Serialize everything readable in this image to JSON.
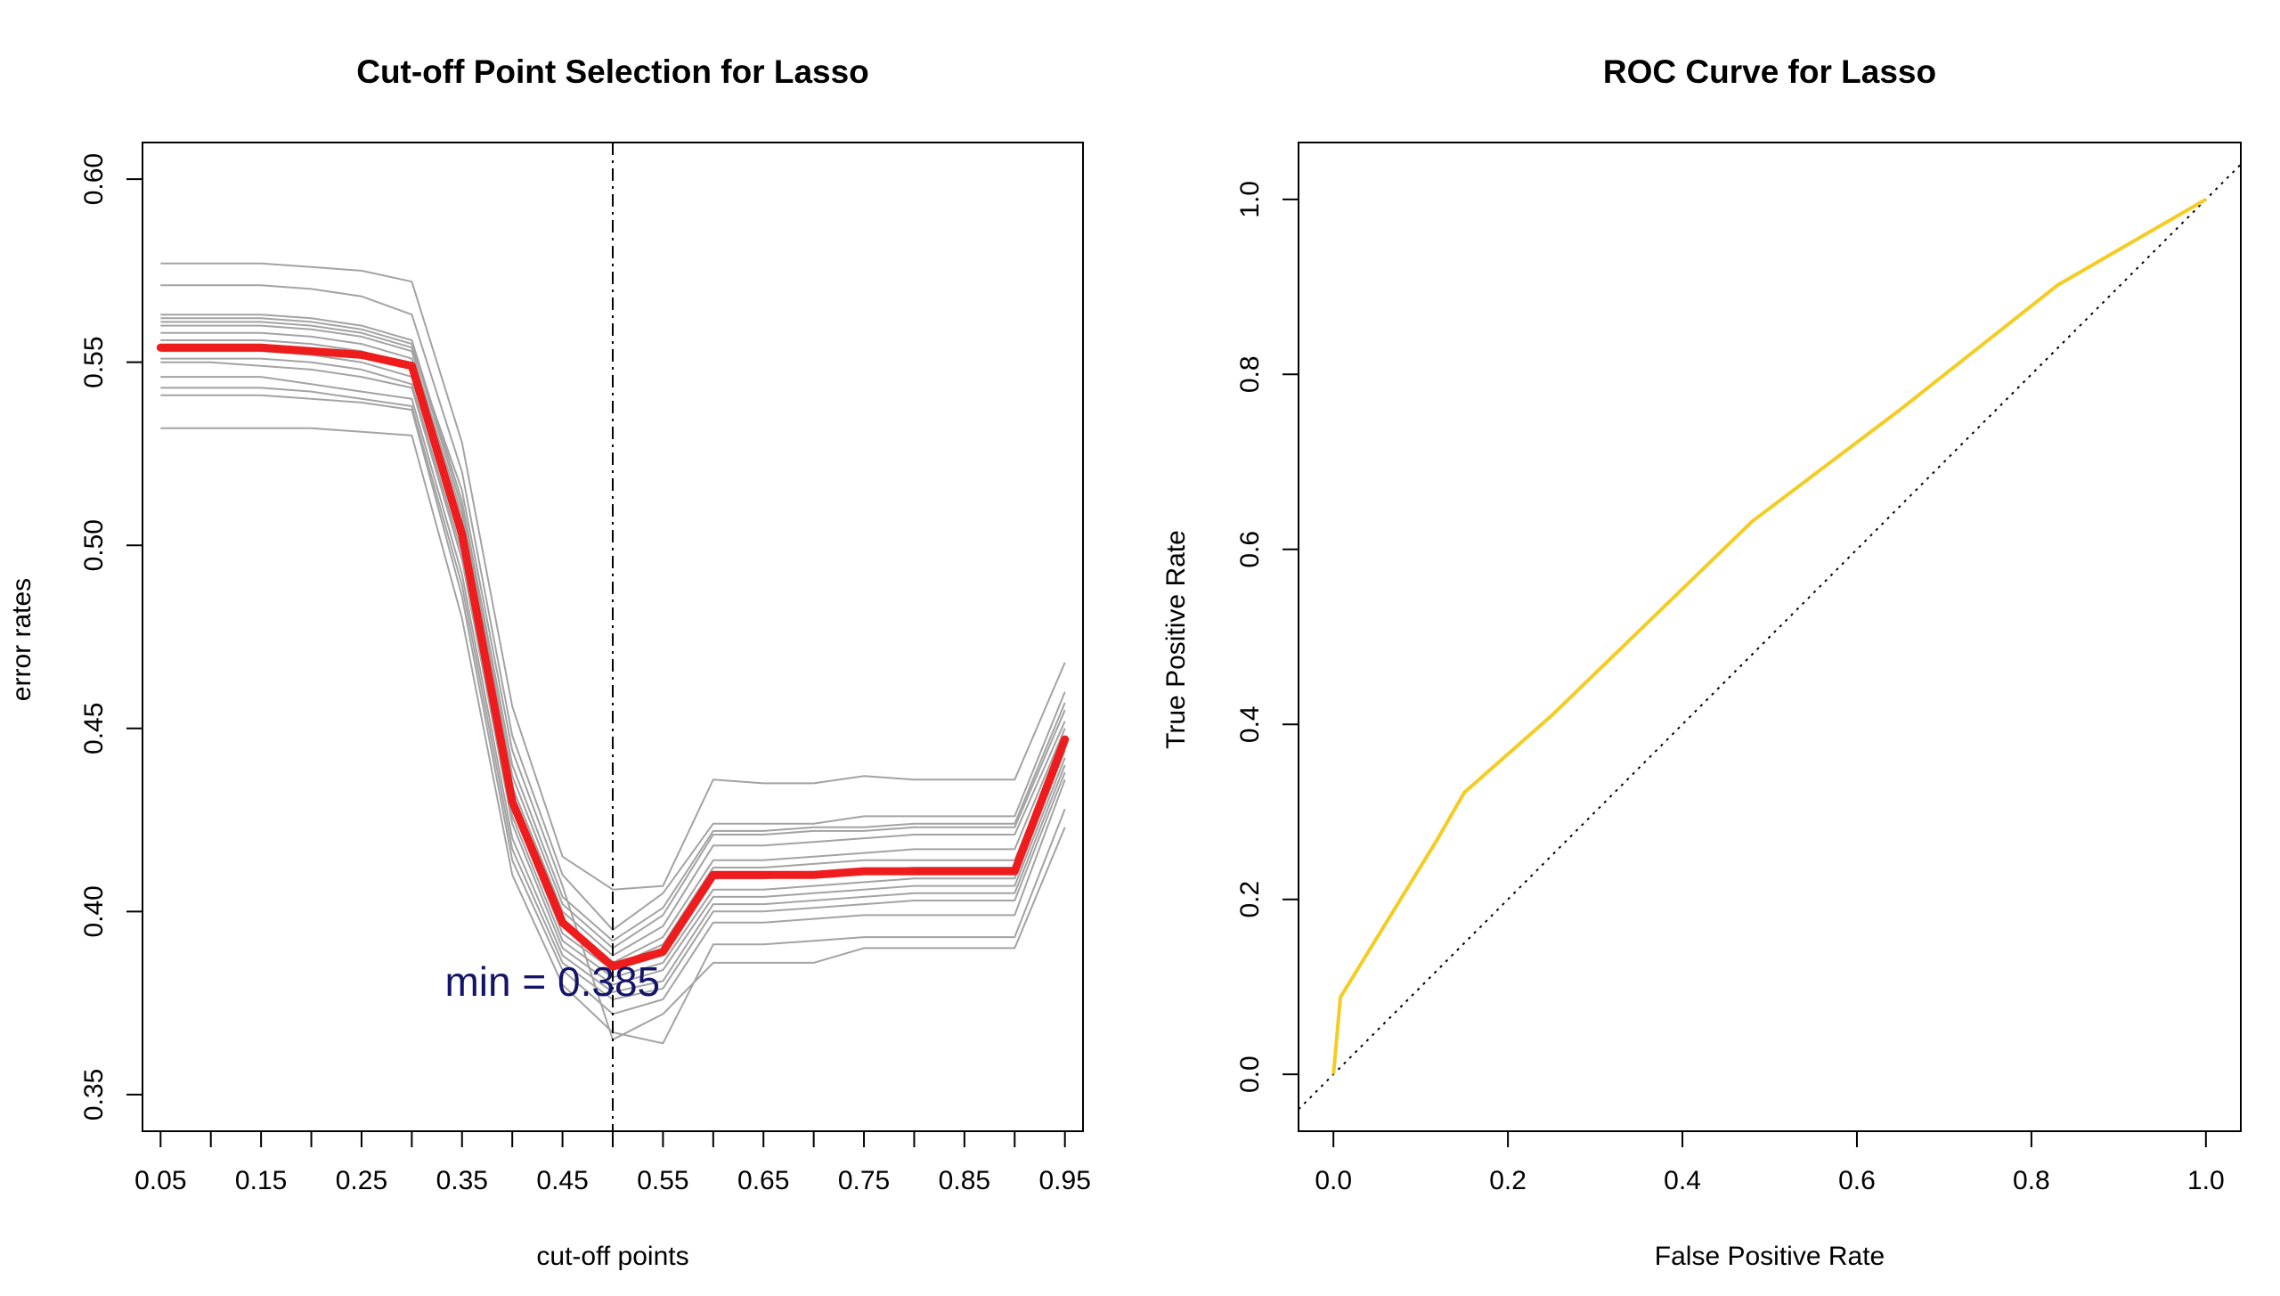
{
  "colors": {
    "background": "#ffffff",
    "axis": "#000000",
    "grey_runs": "#a3a3a3",
    "mean_line": "#ee1c1c",
    "annotation": "#14146b",
    "roc_line": "#f5cc21",
    "diagonal": "#000000"
  },
  "chart_data": [
    {
      "type": "line",
      "title": "Cut-off Point Selection for Lasso",
      "xlabel": "cut-off points",
      "ylabel": "error rates",
      "x": [
        0.05,
        0.1,
        0.15,
        0.2,
        0.25,
        0.3,
        0.35,
        0.4,
        0.45,
        0.5,
        0.55,
        0.6,
        0.65,
        0.7,
        0.75,
        0.8,
        0.85,
        0.9,
        0.95
      ],
      "x_ticks": [
        0.05,
        0.1,
        0.15,
        0.2,
        0.25,
        0.3,
        0.35,
        0.4,
        0.45,
        0.5,
        0.55,
        0.6,
        0.65,
        0.7,
        0.75,
        0.8,
        0.85,
        0.9,
        0.95
      ],
      "x_tick_labels": [
        "0.05",
        "",
        "0.15",
        "",
        "0.25",
        "",
        "0.35",
        "",
        "0.45",
        "",
        "0.55",
        "",
        "0.65",
        "",
        "0.75",
        "",
        "0.85",
        "",
        "0.95"
      ],
      "y_ticks": [
        0.35,
        0.4,
        0.45,
        0.5,
        0.55,
        0.6
      ],
      "y_tick_labels": [
        "0.35",
        "0.40",
        "0.45",
        "0.50",
        "0.55",
        "0.60"
      ],
      "xlim": [
        0.032,
        0.968
      ],
      "ylim": [
        0.34,
        0.61
      ],
      "vline_x": 0.5,
      "annotation": {
        "text": "min = 0.385",
        "x": 0.44,
        "y": 0.377
      },
      "mean_series": [
        0.554,
        0.554,
        0.554,
        0.553,
        0.552,
        0.549,
        0.503,
        0.43,
        0.397,
        0.385,
        0.389,
        0.41,
        0.41,
        0.41,
        0.411,
        0.411,
        0.411,
        0.411,
        0.447
      ],
      "series": [
        {
          "values": [
            0.577,
            0.577,
            0.577,
            0.576,
            0.575,
            0.572,
            0.528,
            0.456,
            0.415,
            0.406,
            0.407,
            0.436,
            0.435,
            0.435,
            0.437,
            0.436,
            0.436,
            0.436,
            0.468
          ]
        },
        {
          "values": [
            0.571,
            0.571,
            0.571,
            0.57,
            0.568,
            0.563,
            0.52,
            0.448,
            0.41,
            0.395,
            0.405,
            0.424,
            0.424,
            0.424,
            0.426,
            0.426,
            0.426,
            0.426,
            0.46
          ]
        },
        {
          "values": [
            0.563,
            0.563,
            0.563,
            0.562,
            0.56,
            0.556,
            0.512,
            0.44,
            0.404,
            0.392,
            0.401,
            0.422,
            0.422,
            0.423,
            0.423,
            0.424,
            0.424,
            0.424,
            0.457
          ]
        },
        {
          "values": [
            0.562,
            0.562,
            0.562,
            0.561,
            0.559,
            0.555,
            0.51,
            0.437,
            0.402,
            0.39,
            0.399,
            0.421,
            0.421,
            0.422,
            0.422,
            0.423,
            0.423,
            0.423,
            0.455
          ]
        },
        {
          "values": [
            0.56,
            0.56,
            0.56,
            0.559,
            0.557,
            0.553,
            0.508,
            0.434,
            0.4,
            0.388,
            0.396,
            0.418,
            0.418,
            0.419,
            0.42,
            0.421,
            0.421,
            0.421,
            0.452
          ]
        },
        {
          "values": [
            0.558,
            0.558,
            0.558,
            0.557,
            0.555,
            0.551,
            0.505,
            0.432,
            0.398,
            0.386,
            0.393,
            0.414,
            0.414,
            0.415,
            0.416,
            0.417,
            0.417,
            0.417,
            0.45
          ]
        },
        {
          "values": [
            0.556,
            0.556,
            0.556,
            0.555,
            0.553,
            0.549,
            0.503,
            0.43,
            0.396,
            0.385,
            0.391,
            0.412,
            0.412,
            0.413,
            0.414,
            0.414,
            0.414,
            0.414,
            0.448
          ]
        },
        {
          "values": [
            0.553,
            0.553,
            0.553,
            0.552,
            0.55,
            0.546,
            0.5,
            0.428,
            0.394,
            0.384,
            0.388,
            0.409,
            0.409,
            0.41,
            0.411,
            0.412,
            0.412,
            0.412,
            0.446
          ]
        },
        {
          "values": [
            0.551,
            0.551,
            0.551,
            0.55,
            0.548,
            0.544,
            0.498,
            0.426,
            0.392,
            0.382,
            0.386,
            0.406,
            0.406,
            0.407,
            0.408,
            0.409,
            0.409,
            0.409,
            0.444
          ]
        },
        {
          "values": [
            0.55,
            0.55,
            0.549,
            0.548,
            0.546,
            0.543,
            0.496,
            0.424,
            0.39,
            0.38,
            0.384,
            0.404,
            0.404,
            0.405,
            0.406,
            0.407,
            0.407,
            0.407,
            0.442
          ]
        },
        {
          "values": [
            0.546,
            0.546,
            0.546,
            0.544,
            0.542,
            0.54,
            0.492,
            0.42,
            0.388,
            0.378,
            0.381,
            0.402,
            0.402,
            0.403,
            0.404,
            0.405,
            0.405,
            0.405,
            0.44
          ]
        },
        {
          "values": [
            0.543,
            0.543,
            0.543,
            0.542,
            0.54,
            0.538,
            0.489,
            0.417,
            0.386,
            0.376,
            0.379,
            0.4,
            0.4,
            0.401,
            0.402,
            0.403,
            0.403,
            0.403,
            0.438
          ]
        },
        {
          "values": [
            0.541,
            0.541,
            0.541,
            0.54,
            0.539,
            0.537,
            0.486,
            0.414,
            0.384,
            0.372,
            0.376,
            0.397,
            0.397,
            0.398,
            0.399,
            0.399,
            0.399,
            0.399,
            0.436
          ]
        },
        {
          "values": [
            0.532,
            0.532,
            0.532,
            0.532,
            0.531,
            0.53,
            0.48,
            0.41,
            0.38,
            0.367,
            0.364,
            0.391,
            0.391,
            0.392,
            0.393,
            0.393,
            0.393,
            0.393,
            0.428
          ]
        },
        {
          "values": [
            0.561,
            0.561,
            0.561,
            0.56,
            0.558,
            0.554,
            0.515,
            0.444,
            0.407,
            0.365,
            0.372,
            0.386,
            0.386,
            0.386,
            0.39,
            0.39,
            0.39,
            0.39,
            0.423
          ]
        }
      ]
    },
    {
      "type": "line",
      "title": "ROC Curve for Lasso",
      "xlabel": "False Positive Rate",
      "ylabel": "True Positive Rate",
      "xlim": [
        -0.04,
        1.04
      ],
      "ylim": [
        -0.065,
        1.065
      ],
      "x_ticks": [
        0.0,
        0.2,
        0.4,
        0.6,
        0.8,
        1.0
      ],
      "x_tick_labels": [
        "0.0",
        "0.2",
        "0.4",
        "0.6",
        "0.8",
        "1.0"
      ],
      "y_ticks": [
        0.0,
        0.2,
        0.4,
        0.6,
        0.8,
        1.0
      ],
      "y_tick_labels": [
        "0.0",
        "0.2",
        "0.4",
        "0.6",
        "0.8",
        "1.0"
      ],
      "roc": {
        "fpr": [
          0.0,
          0.008,
          0.12,
          0.15,
          0.25,
          0.48,
          0.65,
          0.83,
          1.0
        ],
        "tpr": [
          0.0,
          0.088,
          0.27,
          0.322,
          0.41,
          0.632,
          0.76,
          0.902,
          1.0
        ]
      },
      "diagonal": {
        "x": [
          -0.04,
          1.04
        ],
        "y": [
          -0.04,
          1.04
        ]
      }
    }
  ]
}
